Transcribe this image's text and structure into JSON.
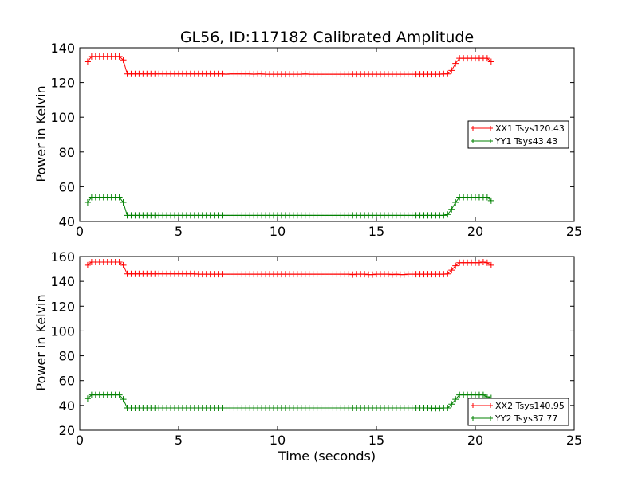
{
  "chart_data": [
    {
      "type": "line",
      "title": "GL56, ID:117182 Calibrated Amplitude",
      "xlabel": "",
      "ylabel": "Power in Kelvin",
      "xlim": [
        0,
        25
      ],
      "ylim": [
        40,
        140
      ],
      "xticks": [
        0,
        5,
        10,
        15,
        20,
        25
      ],
      "yticks": [
        40,
        60,
        80,
        100,
        120,
        140
      ],
      "grid": false,
      "legend_position": "center-right",
      "series": [
        {
          "name": "XX1 Tsys120.43",
          "color": "#ff0000",
          "marker": "+",
          "x": [
            0.4,
            0.6,
            0.8,
            1.0,
            1.2,
            1.4,
            1.6,
            1.8,
            2.0,
            2.2,
            2.4,
            2.6,
            2.8,
            3.0,
            3.2,
            3.4,
            3.6,
            3.8,
            4.0,
            4.2,
            4.4,
            4.6,
            4.8,
            5.0,
            5.2,
            5.4,
            5.6,
            5.8,
            6.0,
            6.2,
            6.4,
            6.6,
            6.8,
            7.0,
            7.2,
            7.4,
            7.6,
            7.8,
            8.0,
            8.2,
            8.4,
            8.6,
            8.8,
            9.0,
            9.2,
            9.4,
            9.6,
            9.8,
            10.0,
            10.2,
            10.4,
            10.6,
            10.8,
            11.0,
            11.2,
            11.4,
            11.6,
            11.8,
            12.0,
            12.2,
            12.4,
            12.6,
            12.8,
            13.0,
            13.2,
            13.4,
            13.6,
            13.8,
            14.0,
            14.2,
            14.4,
            14.6,
            14.8,
            15.0,
            15.2,
            15.4,
            15.6,
            15.8,
            16.0,
            16.2,
            16.4,
            16.6,
            16.8,
            17.0,
            17.2,
            17.4,
            17.6,
            17.8,
            18.0,
            18.2,
            18.4,
            18.6,
            18.8,
            19.0,
            19.2,
            19.4,
            19.6,
            19.8,
            20.0,
            20.2,
            20.4,
            20.6,
            20.8
          ],
          "y": [
            132,
            135,
            135,
            135,
            135,
            135,
            135,
            135,
            135,
            133,
            125,
            125,
            125,
            125,
            125,
            125,
            125,
            125,
            125,
            125,
            125,
            125,
            125,
            125,
            125,
            125,
            125,
            125,
            125,
            125,
            125,
            125,
            125,
            125,
            125,
            124.8,
            125,
            125,
            125,
            125,
            125,
            125,
            124.8,
            125,
            125,
            124.8,
            124.8,
            124.8,
            124.8,
            124.8,
            124.8,
            124.8,
            124.8,
            124.8,
            124.8,
            125,
            124.8,
            124.8,
            124.8,
            124.8,
            124.8,
            124.8,
            124.8,
            124.8,
            124.8,
            124.8,
            124.8,
            124.8,
            124.8,
            124.8,
            124.8,
            124.8,
            124.8,
            124.8,
            124.8,
            124.8,
            124.8,
            124.8,
            124.8,
            124.8,
            124.8,
            124.8,
            124.8,
            124.8,
            124.8,
            124.8,
            124.8,
            124.8,
            124.8,
            124.8,
            125,
            125,
            127,
            131,
            134,
            134,
            134,
            134,
            134,
            134,
            134,
            134,
            132
          ]
        },
        {
          "name": "YY1 Tsys43.43",
          "color": "#008000",
          "marker": "+",
          "x": [
            0.4,
            0.6,
            0.8,
            1.0,
            1.2,
            1.4,
            1.6,
            1.8,
            2.0,
            2.2,
            2.4,
            2.6,
            2.8,
            3.0,
            3.2,
            3.4,
            3.6,
            3.8,
            4.0,
            4.2,
            4.4,
            4.6,
            4.8,
            5.0,
            5.2,
            5.4,
            5.6,
            5.8,
            6.0,
            6.2,
            6.4,
            6.6,
            6.8,
            7.0,
            7.2,
            7.4,
            7.6,
            7.8,
            8.0,
            8.2,
            8.4,
            8.6,
            8.8,
            9.0,
            9.2,
            9.4,
            9.6,
            9.8,
            10.0,
            10.2,
            10.4,
            10.6,
            10.8,
            11.0,
            11.2,
            11.4,
            11.6,
            11.8,
            12.0,
            12.2,
            12.4,
            12.6,
            12.8,
            13.0,
            13.2,
            13.4,
            13.6,
            13.8,
            14.0,
            14.2,
            14.4,
            14.6,
            14.8,
            15.0,
            15.2,
            15.4,
            15.6,
            15.8,
            16.0,
            16.2,
            16.4,
            16.6,
            16.8,
            17.0,
            17.2,
            17.4,
            17.6,
            17.8,
            18.0,
            18.2,
            18.4,
            18.6,
            18.8,
            19.0,
            19.2,
            19.4,
            19.6,
            19.8,
            20.0,
            20.2,
            20.4,
            20.6,
            20.8
          ],
          "y": [
            51,
            54,
            54,
            54,
            54,
            54,
            54,
            54,
            54,
            51,
            43.5,
            43.5,
            43.5,
            43.5,
            43.5,
            43.5,
            43.5,
            43.5,
            43.5,
            43.5,
            43.5,
            43.5,
            43.5,
            43.5,
            43.5,
            43.5,
            43.5,
            43.5,
            43.5,
            43.5,
            43.5,
            43.5,
            43.5,
            43.5,
            43.5,
            43.5,
            43.5,
            43.5,
            43.5,
            43.5,
            43.5,
            43.5,
            43.5,
            43.5,
            43.5,
            43.5,
            43.5,
            43.5,
            43.5,
            43.5,
            43.5,
            43.5,
            43.5,
            43.5,
            43.5,
            43.5,
            43.5,
            43.5,
            43.5,
            43.5,
            43.5,
            43.5,
            43.5,
            43.5,
            43.5,
            43.5,
            43.5,
            43.5,
            43.5,
            43.5,
            43.5,
            43.5,
            43.5,
            43.5,
            43.5,
            43.5,
            43.5,
            43.5,
            43.5,
            43.5,
            43.5,
            43.5,
            43.5,
            43.5,
            43.5,
            43.5,
            43.5,
            43.5,
            43.5,
            43.5,
            43.5,
            44,
            47,
            51,
            54,
            54,
            54,
            54,
            54,
            54,
            54,
            54,
            52
          ]
        }
      ]
    },
    {
      "type": "line",
      "title": "",
      "xlabel": "Time (seconds)",
      "ylabel": "Power in Kelvin",
      "xlim": [
        0,
        25
      ],
      "ylim": [
        20,
        160
      ],
      "xticks": [
        0,
        5,
        10,
        15,
        20,
        25
      ],
      "yticks": [
        20,
        40,
        60,
        80,
        100,
        120,
        140,
        160
      ],
      "grid": false,
      "legend_position": "lower-right",
      "series": [
        {
          "name": "XX2 Tsys140.95",
          "color": "#ff0000",
          "marker": "+",
          "x": [
            0.4,
            0.6,
            0.8,
            1.0,
            1.2,
            1.4,
            1.6,
            1.8,
            2.0,
            2.2,
            2.4,
            2.6,
            2.8,
            3.0,
            3.2,
            3.4,
            3.6,
            3.8,
            4.0,
            4.2,
            4.4,
            4.6,
            4.8,
            5.0,
            5.2,
            5.4,
            5.6,
            5.8,
            6.0,
            6.2,
            6.4,
            6.6,
            6.8,
            7.0,
            7.2,
            7.4,
            7.6,
            7.8,
            8.0,
            8.2,
            8.4,
            8.6,
            8.8,
            9.0,
            9.2,
            9.4,
            9.6,
            9.8,
            10.0,
            10.2,
            10.4,
            10.6,
            10.8,
            11.0,
            11.2,
            11.4,
            11.6,
            11.8,
            12.0,
            12.2,
            12.4,
            12.6,
            12.8,
            13.0,
            13.2,
            13.4,
            13.6,
            13.8,
            14.0,
            14.2,
            14.4,
            14.6,
            14.8,
            15.0,
            15.2,
            15.4,
            15.6,
            15.8,
            16.0,
            16.2,
            16.4,
            16.6,
            16.8,
            17.0,
            17.2,
            17.4,
            17.6,
            17.8,
            18.0,
            18.2,
            18.4,
            18.6,
            18.8,
            19.0,
            19.2,
            19.4,
            19.6,
            19.8,
            20.0,
            20.2,
            20.4,
            20.6,
            20.8
          ],
          "y": [
            153,
            155.5,
            155.5,
            155.5,
            155.5,
            155.5,
            155.5,
            155.5,
            155.5,
            153,
            146,
            146,
            146,
            146,
            146,
            146,
            146,
            146,
            146,
            146,
            146,
            146,
            146,
            146,
            146,
            146,
            146,
            146,
            145.8,
            145.8,
            145.8,
            145.8,
            145.8,
            145.8,
            145.8,
            145.8,
            145.8,
            145.8,
            145.8,
            145.8,
            145.8,
            145.8,
            145.8,
            145.8,
            145.8,
            145.8,
            145.8,
            145.8,
            145.8,
            145.8,
            145.8,
            145.8,
            145.8,
            145.8,
            145.8,
            145.8,
            145.8,
            145.8,
            145.8,
            145.8,
            145.8,
            145.8,
            145.8,
            145.8,
            145.8,
            145.8,
            145.8,
            145.5,
            145.8,
            145.8,
            145.8,
            145.5,
            145.5,
            145.8,
            145.8,
            145.8,
            145.8,
            145.5,
            145.8,
            145.5,
            145.5,
            145.8,
            145.8,
            145.8,
            145.8,
            145.8,
            145.8,
            145.8,
            145.8,
            145.8,
            145.8,
            146,
            149,
            152.5,
            155,
            155,
            155,
            155,
            155,
            155,
            155.5,
            155,
            153
          ]
        },
        {
          "name": "YY2 Tsys37.77",
          "color": "#008000",
          "marker": "+",
          "x": [
            0.4,
            0.6,
            0.8,
            1.0,
            1.2,
            1.4,
            1.6,
            1.8,
            2.0,
            2.2,
            2.4,
            2.6,
            2.8,
            3.0,
            3.2,
            3.4,
            3.6,
            3.8,
            4.0,
            4.2,
            4.4,
            4.6,
            4.8,
            5.0,
            5.2,
            5.4,
            5.6,
            5.8,
            6.0,
            6.2,
            6.4,
            6.6,
            6.8,
            7.0,
            7.2,
            7.4,
            7.6,
            7.8,
            8.0,
            8.2,
            8.4,
            8.6,
            8.8,
            9.0,
            9.2,
            9.4,
            9.6,
            9.8,
            10.0,
            10.2,
            10.4,
            10.6,
            10.8,
            11.0,
            11.2,
            11.4,
            11.6,
            11.8,
            12.0,
            12.2,
            12.4,
            12.6,
            12.8,
            13.0,
            13.2,
            13.4,
            13.6,
            13.8,
            14.0,
            14.2,
            14.4,
            14.6,
            14.8,
            15.0,
            15.2,
            15.4,
            15.6,
            15.8,
            16.0,
            16.2,
            16.4,
            16.6,
            16.8,
            17.0,
            17.2,
            17.4,
            17.6,
            17.8,
            18.0,
            18.2,
            18.4,
            18.6,
            18.8,
            19.0,
            19.2,
            19.4,
            19.6,
            19.8,
            20.0,
            20.2,
            20.4,
            20.6,
            20.8
          ],
          "y": [
            45.5,
            48.5,
            48.5,
            48.5,
            48.5,
            48.5,
            48.5,
            48.5,
            48.5,
            45,
            38,
            38,
            38,
            38,
            38,
            38,
            38,
            38,
            38,
            38,
            38,
            38,
            38,
            38,
            38,
            38,
            38,
            38,
            38,
            38,
            38,
            38,
            38,
            38,
            38,
            38,
            38,
            38,
            38,
            38,
            38,
            38,
            38,
            38,
            38,
            38,
            38,
            38,
            38,
            38,
            38,
            38,
            38,
            38,
            38,
            38,
            38,
            38,
            38,
            38,
            38,
            38,
            38,
            38,
            38,
            38,
            38,
            38,
            38,
            38,
            38,
            38,
            38,
            38,
            38,
            38,
            38,
            38,
            38,
            38,
            38,
            38,
            38,
            38,
            38,
            38,
            38,
            37.8,
            37.8,
            37.8,
            38,
            38,
            41,
            45,
            48.5,
            48.5,
            48.5,
            48.5,
            48.5,
            48.5,
            48.5,
            47,
            46
          ]
        }
      ]
    }
  ]
}
